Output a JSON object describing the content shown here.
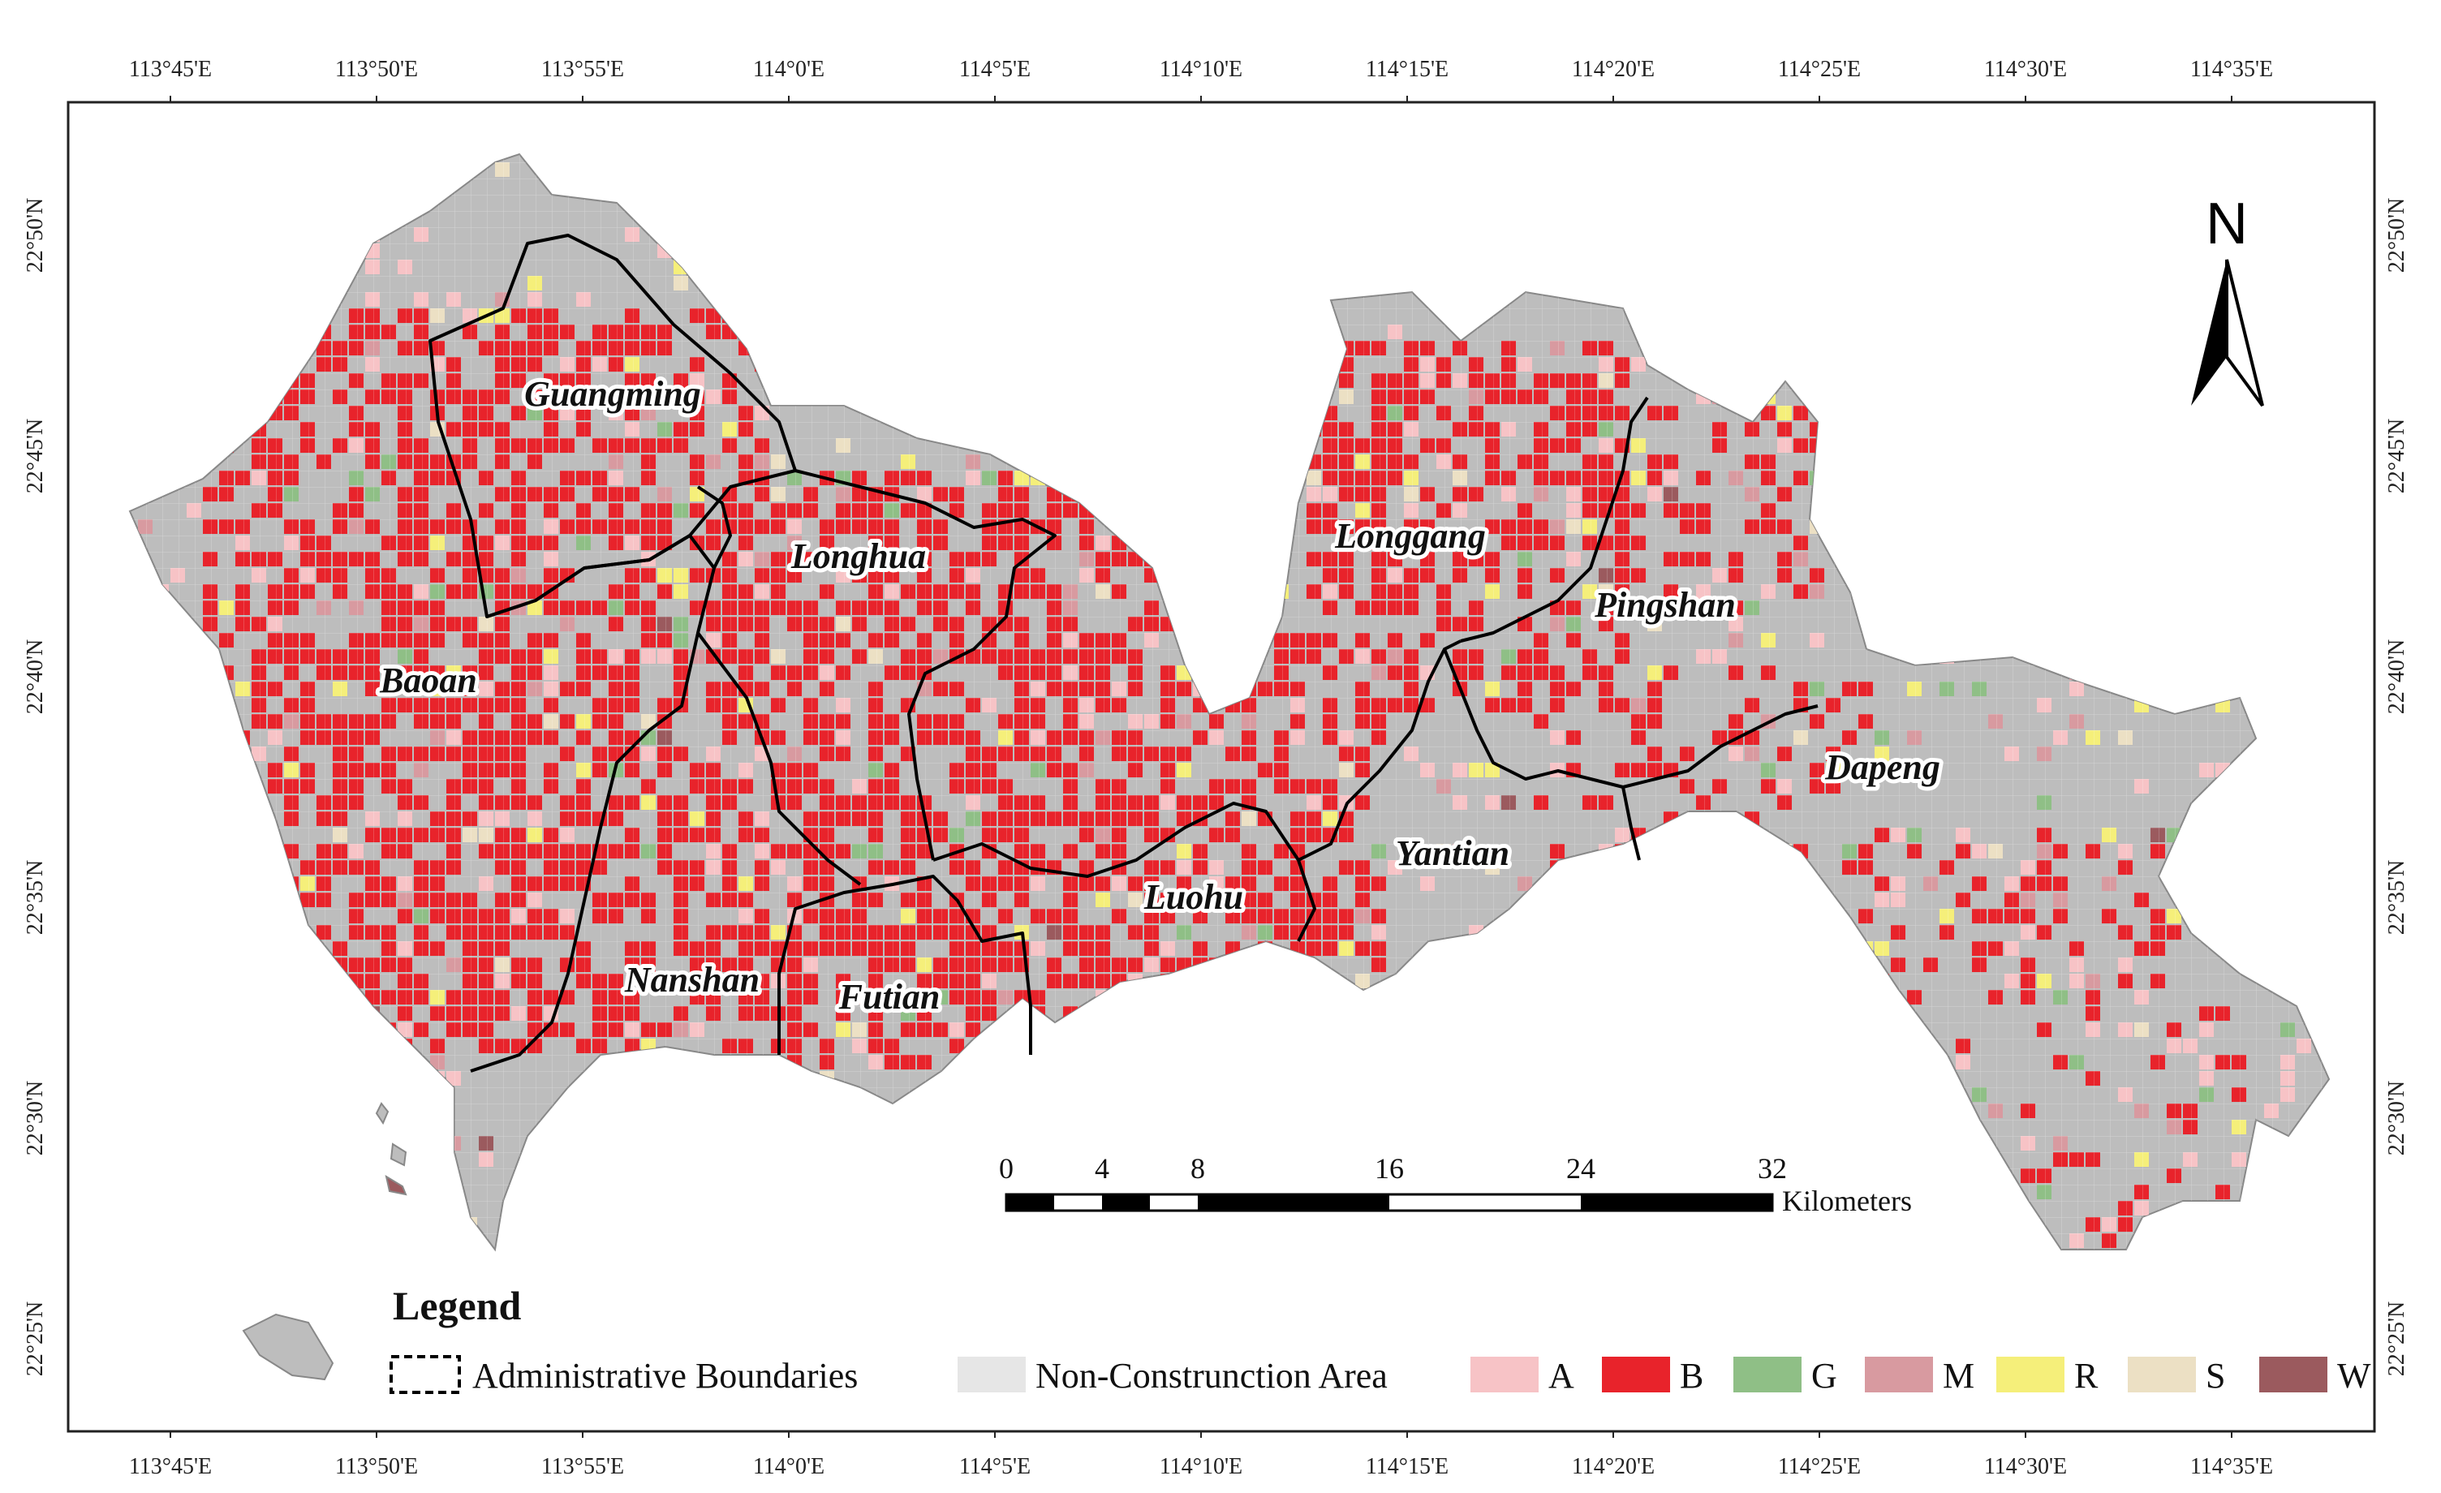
{
  "colors": {
    "A": "#f7c3c6",
    "B": "#e8232b",
    "G": "#8fbf86",
    "M": "#d89aa0",
    "R": "#f5ef7a",
    "S": "#ece0c4",
    "W": "#9b5a5e",
    "non_construction": "#d6d6d6",
    "land_base": "#b8b8b8"
  },
  "graticule": {
    "top_lon": [
      "113°45'E",
      "113°50'E",
      "113°55'E",
      "114°0'E",
      "114°5'E",
      "114°10'E",
      "114°15'E",
      "114°20'E",
      "114°25'E",
      "114°30'E",
      "114°35'E"
    ],
    "bottom_lon": [
      "113°45'E",
      "113°50'E",
      "113°55'E",
      "114°0'E",
      "114°5'E",
      "114°10'E",
      "114°15'E",
      "114°20'E",
      "114°25'E",
      "114°30'E",
      "114°35'E"
    ],
    "left_lat": [
      "22°50'N",
      "22°45'N",
      "22°40'N",
      "22°35'N",
      "22°30'N",
      "22°25'N"
    ],
    "right_lat": [
      "22°50'N",
      "22°45'N",
      "22°40'N",
      "22°35'N",
      "22°30'N",
      "22°25'N"
    ]
  },
  "districts": [
    "Guangming",
    "Longhua",
    "Baoan",
    "Nanshan",
    "Futian",
    "Luohu",
    "Longgang",
    "Pingshan",
    "Yantian",
    "Dapeng"
  ],
  "north_arrow": {
    "label": "N"
  },
  "scale_bar": {
    "ticks": [
      "0",
      "4",
      "8",
      "16",
      "24",
      "32"
    ],
    "unit": "Kilometers"
  },
  "legend": {
    "title": "Legend",
    "boundary_label": "Administrative Boundaries",
    "non_construction_label": "Non-Construnction Area",
    "categories": [
      {
        "code": "A",
        "color": "#f7c3c6"
      },
      {
        "code": "B",
        "color": "#e8232b"
      },
      {
        "code": "G",
        "color": "#8fbf86"
      },
      {
        "code": "M",
        "color": "#d89aa0"
      },
      {
        "code": "R",
        "color": "#f5ef7a"
      },
      {
        "code": "S",
        "color": "#ece0c4"
      },
      {
        "code": "W",
        "color": "#9b5a5e"
      }
    ]
  }
}
